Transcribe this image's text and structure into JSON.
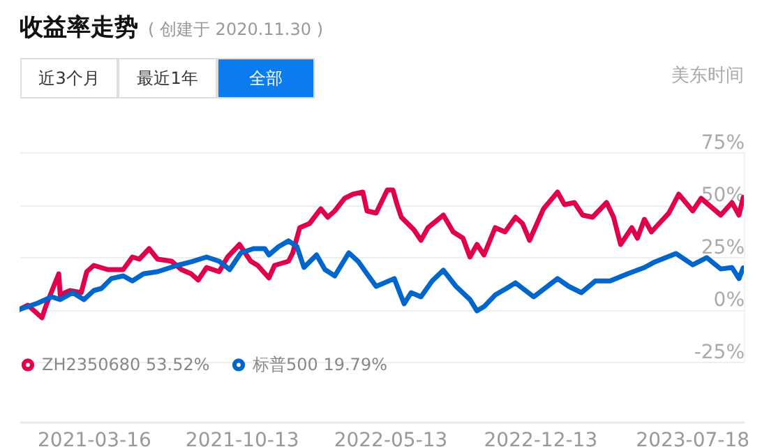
{
  "chart_data": {
    "type": "line",
    "title": "收益率走势",
    "subtitle": "( 创建于 2020.11.30 )",
    "annotations": [
      "近3个月",
      "最近1年",
      "全部",
      "美东时间"
    ],
    "x": [
      "2020-11-30",
      "2020-12-12",
      "2021-01-01",
      "2021-01-07",
      "2021-01-25",
      "2021-01-27",
      "2021-02-10",
      "2021-02-26",
      "2021-03-06",
      "2021-03-16",
      "2021-04-05",
      "2021-04-27",
      "2021-05-10",
      "2021-05-20",
      "2021-06-03",
      "2021-06-15",
      "2021-07-05",
      "2021-07-19",
      "2021-08-02",
      "2021-08-12",
      "2021-08-24",
      "2021-09-11",
      "2021-09-23",
      "2021-10-10",
      "2021-10-26",
      "2021-11-05",
      "2021-11-21",
      "2021-11-29",
      "2021-12-19",
      "2021-12-25",
      "2022-01-04",
      "2022-01-18",
      "2022-02-03",
      "2022-02-13",
      "2022-02-23",
      "2022-03-09",
      "2022-03-21",
      "2022-04-04",
      "2022-04-10",
      "2022-04-23",
      "2022-05-09",
      "2022-05-17",
      "2022-05-23",
      "2022-05-29",
      "2022-06-16",
      "2022-06-26",
      "2022-07-06",
      "2022-07-28",
      "2022-08-11",
      "2022-08-25",
      "2022-09-04",
      "2022-09-14",
      "2022-09-24",
      "2022-10-10",
      "2022-10-24",
      "2022-11-08",
      "2022-11-18",
      "2022-11-28",
      "2022-12-18",
      "2023-01-07",
      "2023-01-17",
      "2023-01-31",
      "2023-02-12",
      "2023-02-26",
      "2023-03-18",
      "2023-03-28",
      "2023-04-07",
      "2023-04-23",
      "2023-05-01",
      "2023-05-11",
      "2023-05-21",
      "2023-06-01",
      "2023-06-15",
      "2023-06-29",
      "2023-07-19",
      "2023-07-31",
      "2023-08-14",
      "2023-08-28",
      "2023-09-13",
      "2023-09-23",
      "2023-09-29"
    ],
    "series": [
      {
        "name": "ZH2350680 53.52%",
        "color": "#e0004d",
        "values": [
          0,
          2,
          -4,
          2,
          17,
          7,
          9,
          8,
          18,
          21,
          19,
          19,
          25,
          24,
          29,
          24,
          23,
          19,
          17,
          14,
          20,
          18,
          25,
          31,
          23,
          21,
          15,
          21,
          23,
          27,
          39,
          41,
          48,
          44,
          47,
          53,
          55,
          56,
          47,
          46,
          57,
          57,
          50,
          44,
          38,
          33,
          39,
          45,
          37,
          34,
          25,
          31,
          26,
          39,
          37,
          44,
          41,
          33,
          48,
          56,
          50,
          51,
          45,
          44,
          51,
          44,
          31,
          39,
          34,
          43,
          37,
          41,
          46,
          55,
          47,
          53,
          49,
          45,
          51,
          45,
          53.52
        ]
      },
      {
        "name": "标普500 19.79%",
        "color": "#0066cc",
        "x": [
          "2020-11-30",
          "2020-12-26",
          "2021-01-15",
          "2021-01-27",
          "2021-02-14",
          "2021-03-02",
          "2021-03-16",
          "2021-03-27",
          "2021-04-10",
          "2021-04-27",
          "2021-05-10",
          "2021-05-26",
          "2021-06-15",
          "2021-07-13",
          "2021-08-02",
          "2021-08-24",
          "2021-09-11",
          "2021-09-26",
          "2021-10-12",
          "2021-10-30",
          "2021-11-15",
          "2021-11-21",
          "2021-12-05",
          "2021-12-19",
          "2021-12-31",
          "2022-01-10",
          "2022-01-28",
          "2022-02-09",
          "2022-02-23",
          "2022-03-15",
          "2022-03-29",
          "2022-04-10",
          "2022-04-23",
          "2022-05-19",
          "2022-06-02",
          "2022-06-12",
          "2022-06-26",
          "2022-07-12",
          "2022-07-28",
          "2022-08-15",
          "2022-09-04",
          "2022-09-14",
          "2022-09-24",
          "2022-10-10",
          "2022-10-26",
          "2022-11-08",
          "2022-12-04",
          "2023-01-07",
          "2023-01-23",
          "2023-02-10",
          "2023-03-02",
          "2023-03-23",
          "2023-04-17",
          "2023-05-11",
          "2023-05-26",
          "2023-06-25",
          "2023-07-19",
          "2023-08-08",
          "2023-08-28",
          "2023-09-13",
          "2023-09-23",
          "2023-09-29"
        ],
        "values": [
          0,
          3,
          6,
          4.7,
          8,
          4.7,
          9,
          10,
          14.7,
          16,
          13.6,
          17,
          18,
          21,
          22.7,
          25,
          23,
          19,
          27,
          29,
          29,
          26,
          30,
          32.7,
          30,
          20,
          26,
          19,
          16,
          27,
          22.7,
          17,
          11,
          14.7,
          2.7,
          8,
          6,
          13.6,
          18.7,
          11,
          4.7,
          -0.7,
          1.3,
          6.9,
          10,
          12.7,
          6,
          14.7,
          11,
          8,
          13.6,
          13.6,
          17,
          20,
          22.7,
          26.7,
          21.3,
          24.7,
          19.3,
          20,
          14.7,
          19.79
        ]
      }
    ],
    "xlim": [
      "2020-11-30",
      "2023-09-30"
    ],
    "xticks": [
      "2021-03-16",
      "2021-10-13",
      "2022-05-13",
      "2022-12-13",
      "2023-07-18"
    ],
    "ylim": [
      -25,
      75
    ],
    "yticks": [
      {
        "value": 75,
        "label": "75%"
      },
      {
        "value": 50,
        "label": "50%"
      },
      {
        "value": 25,
        "label": "25%"
      },
      {
        "value": 0,
        "label": "0%"
      },
      {
        "value": -25,
        "label": "-25%"
      }
    ],
    "grid": "y",
    "legend": "bottom"
  }
}
